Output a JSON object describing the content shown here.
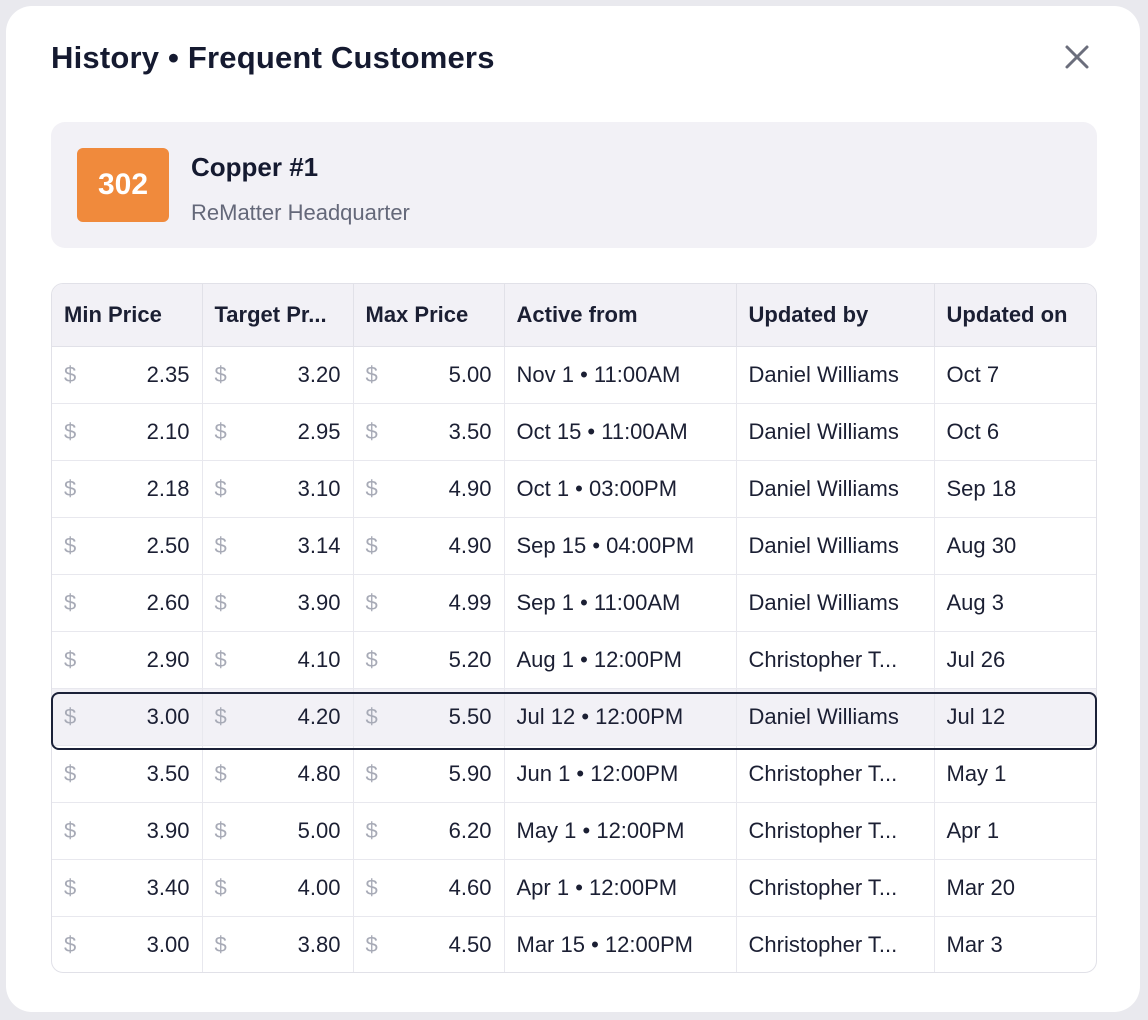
{
  "modal": {
    "title": "History • Frequent Customers",
    "close_icon": "close-icon"
  },
  "item": {
    "badge": "302",
    "badge_color": "#f08a3c",
    "name": "Copper #1",
    "location": "ReMatter Headquarter"
  },
  "table": {
    "currency_symbol": "$",
    "headers": [
      "Min Price",
      "Target Pr...",
      "Max Price",
      "Active from",
      "Updated by",
      "Updated on"
    ],
    "selected_row": 6,
    "rows": [
      {
        "min": "2.35",
        "target": "3.20",
        "max": "5.00",
        "active_from": "Nov 1 • 11:00AM",
        "updated_by": "Daniel Williams",
        "updated_on": "Oct 7"
      },
      {
        "min": "2.10",
        "target": "2.95",
        "max": "3.50",
        "active_from": "Oct 15 • 11:00AM",
        "updated_by": "Daniel Williams",
        "updated_on": "Oct 6"
      },
      {
        "min": "2.18",
        "target": "3.10",
        "max": "4.90",
        "active_from": "Oct 1 • 03:00PM",
        "updated_by": "Daniel Williams",
        "updated_on": "Sep 18"
      },
      {
        "min": "2.50",
        "target": "3.14",
        "max": "4.90",
        "active_from": "Sep 15 • 04:00PM",
        "updated_by": "Daniel Williams",
        "updated_on": "Aug 30"
      },
      {
        "min": "2.60",
        "target": "3.90",
        "max": "4.99",
        "active_from": "Sep 1 • 11:00AM",
        "updated_by": "Daniel Williams",
        "updated_on": "Aug 3"
      },
      {
        "min": "2.90",
        "target": "4.10",
        "max": "5.20",
        "active_from": "Aug 1 • 12:00PM",
        "updated_by": "Christopher T...",
        "updated_on": "Jul 26"
      },
      {
        "min": "3.00",
        "target": "4.20",
        "max": "5.50",
        "active_from": "Jul 12 • 12:00PM",
        "updated_by": "Daniel Williams",
        "updated_on": "Jul 12"
      },
      {
        "min": "3.50",
        "target": "4.80",
        "max": "5.90",
        "active_from": "Jun 1 • 12:00PM",
        "updated_by": "Christopher T...",
        "updated_on": "May 1"
      },
      {
        "min": "3.90",
        "target": "5.00",
        "max": "6.20",
        "active_from": "May 1 • 12:00PM",
        "updated_by": "Christopher T...",
        "updated_on": "Apr 1"
      },
      {
        "min": "3.40",
        "target": "4.00",
        "max": "4.60",
        "active_from": "Apr 1 • 12:00PM",
        "updated_by": "Christopher T...",
        "updated_on": "Mar 20"
      },
      {
        "min": "3.00",
        "target": "3.80",
        "max": "4.50",
        "active_from": "Mar 15 • 12:00PM",
        "updated_by": "Christopher T...",
        "updated_on": "Mar 3"
      }
    ]
  }
}
